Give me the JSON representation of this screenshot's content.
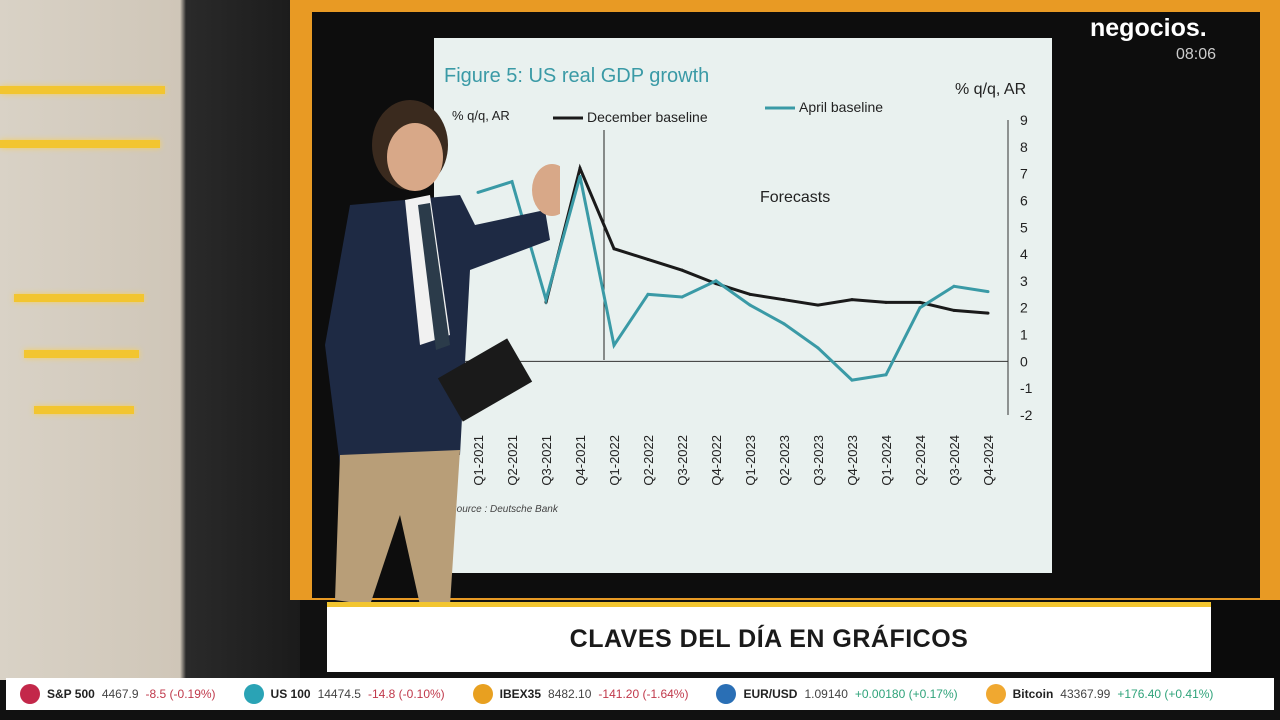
{
  "brand": {
    "logo": "negocios.",
    "time": "08:06"
  },
  "lower_third": {
    "title": "CLAVES DEL DÍA EN GRÁFICOS"
  },
  "ticker": [
    {
      "name": "S&P 500",
      "price": "4467.9",
      "change": "-8.5 (-0.19%)",
      "dir": "neg",
      "icon": "us-flag-icon",
      "color": "#c3284a"
    },
    {
      "name": "US 100",
      "price": "14474.5",
      "change": "-14.8 (-0.10%)",
      "dir": "neg",
      "icon": "us-flag-icon",
      "color": "#2aa3b5"
    },
    {
      "name": "IBEX35",
      "price": "8482.10",
      "change": "-141.20 (-1.64%)",
      "dir": "neg",
      "icon": "spain-flag-icon",
      "color": "#e8a020"
    },
    {
      "name": "EUR/USD",
      "price": "1.09140",
      "change": "+0.00180 (+0.17%)",
      "dir": "pos",
      "icon": "globe-icon",
      "color": "#2a6fb5"
    },
    {
      "name": "Bitcoin",
      "price": "43367.99",
      "change": "+176.40 (+0.41%)",
      "dir": "pos",
      "icon": "bitcoin-icon",
      "color": "#f0a830"
    }
  ],
  "chart_data": {
    "type": "line",
    "title": "Figure 5: US real GDP growth",
    "ylabel_left": "% q/q, AR",
    "ylabel_right": "% q/q, AR",
    "annotation": "Forecasts",
    "source": "Source : Deutsche Bank",
    "ylim": [
      -2,
      9
    ],
    "yticks": [
      -2,
      -1,
      0,
      1,
      2,
      3,
      4,
      5,
      6,
      7,
      8,
      9
    ],
    "categories": [
      "Q1-2021",
      "Q2-2021",
      "Q3-2021",
      "Q4-2021",
      "Q1-2022",
      "Q2-2022",
      "Q3-2022",
      "Q4-2022",
      "Q1-2023",
      "Q2-2023",
      "Q3-2023",
      "Q4-2023",
      "Q1-2024",
      "Q2-2024",
      "Q3-2024",
      "Q4-2024"
    ],
    "series": [
      {
        "name": "December baseline",
        "color": "#1a1a1a",
        "values": [
          null,
          null,
          2.2,
          7.2,
          4.2,
          3.8,
          3.4,
          2.9,
          2.5,
          2.3,
          2.1,
          2.3,
          2.2,
          2.2,
          1.9,
          1.8
        ]
      },
      {
        "name": "April baseline",
        "color": "#3a9aa6",
        "values": [
          6.3,
          6.7,
          2.3,
          6.9,
          0.6,
          2.5,
          2.4,
          3.0,
          2.1,
          1.4,
          0.5,
          -0.7,
          -0.5,
          2.0,
          2.8,
          2.6
        ]
      }
    ]
  }
}
